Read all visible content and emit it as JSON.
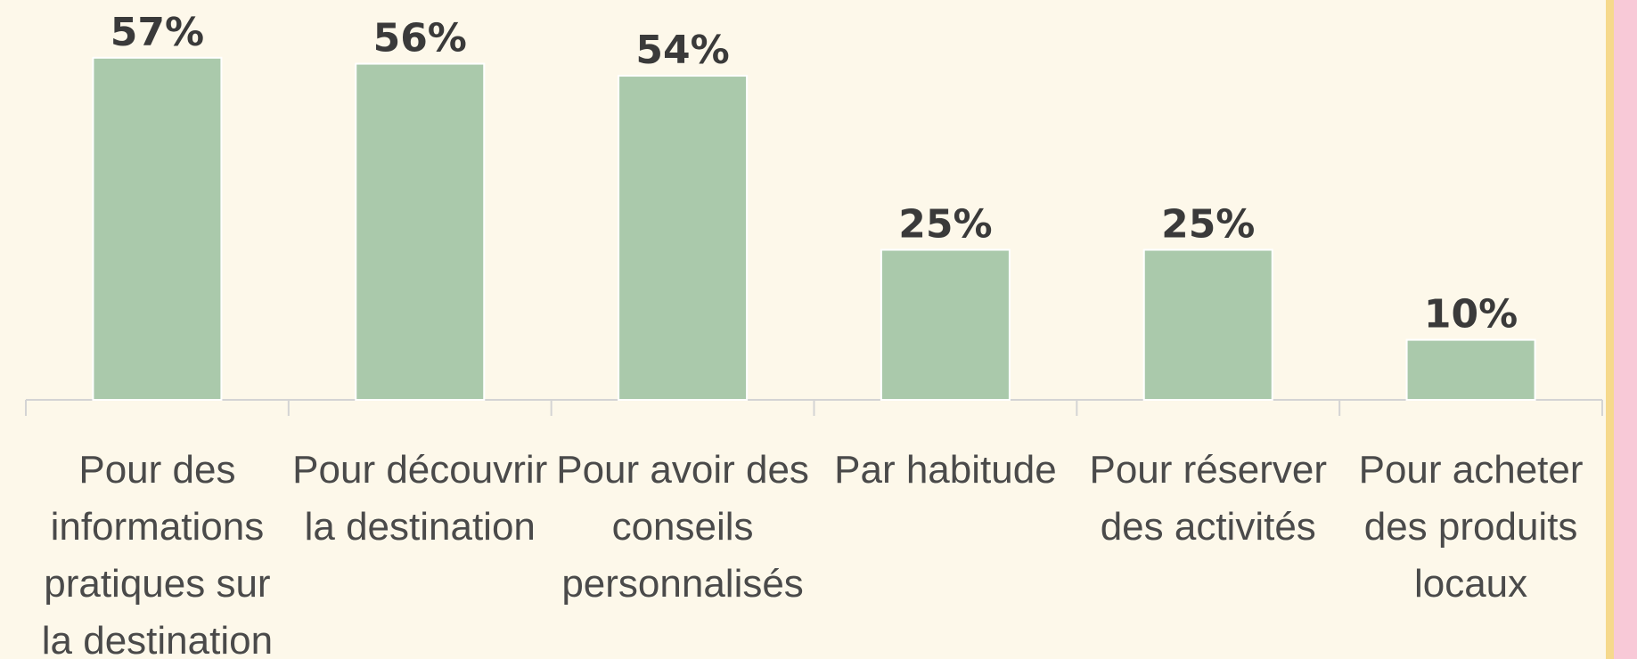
{
  "chart_data": {
    "type": "bar",
    "categories": [
      "Pour des informations pratiques sur la destination",
      "Pour découvrir la destination",
      "Pour avoir des conseils personnalisés",
      "Par habitude",
      "Pour réserver des activités",
      "Pour acheter des produits locaux"
    ],
    "values": [
      57,
      56,
      54,
      25,
      25,
      10
    ],
    "value_labels": [
      "57%",
      "56%",
      "54%",
      "25%",
      "25%",
      "10%"
    ],
    "color": "#aac9ab"
  }
}
